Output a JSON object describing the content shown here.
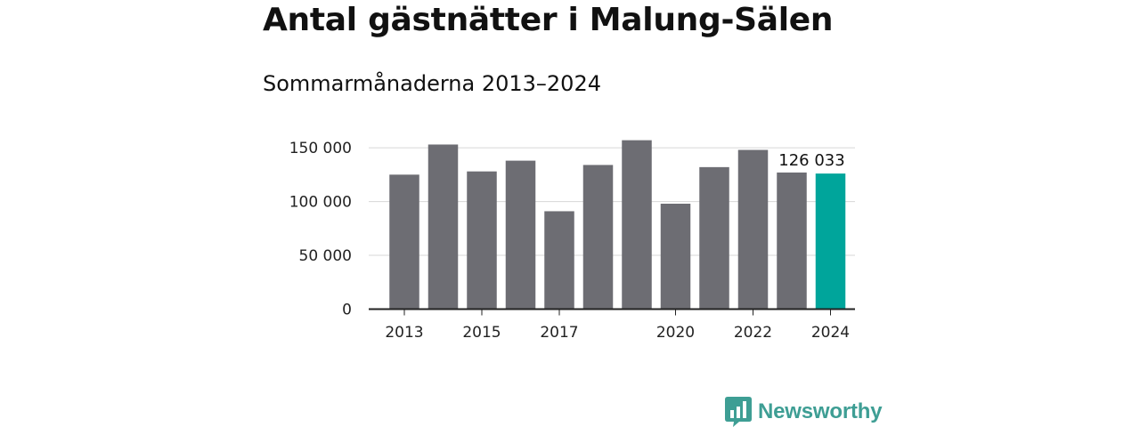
{
  "colors": {
    "bar_default": "#6d6d73",
    "bar_highlight": "#00a59b",
    "gridline": "#d7d7d7",
    "axis": "#222222",
    "brand": "#3e9e94"
  },
  "chart_data": {
    "type": "bar",
    "title": "Antal gästnätter i Malung-Sälen",
    "subtitle": "Sommarmånaderna 2013–2024",
    "categories": [
      "2013",
      "2014",
      "2015",
      "2016",
      "2017",
      "2018",
      "2019",
      "2020",
      "2021",
      "2022",
      "2023",
      "2024"
    ],
    "values": [
      125000,
      153000,
      128000,
      138000,
      91000,
      134000,
      157000,
      98000,
      132000,
      148000,
      127000,
      126033
    ],
    "xtick_labels": [
      "2013",
      "",
      "2015",
      "",
      "2017",
      "",
      "",
      "2020",
      "",
      "2022",
      "",
      "2024"
    ],
    "yticks": [
      0,
      50000,
      100000,
      150000
    ],
    "ytick_labels": [
      "0",
      "50 000",
      "100 000",
      "150 000"
    ],
    "ylim": [
      0,
      160000
    ],
    "highlight_index": 11,
    "annotation": "126 033",
    "grid": true,
    "xlabel": "",
    "ylabel": ""
  },
  "brand": {
    "name": "Newsworthy",
    "icon": "chart-bubble-icon"
  }
}
